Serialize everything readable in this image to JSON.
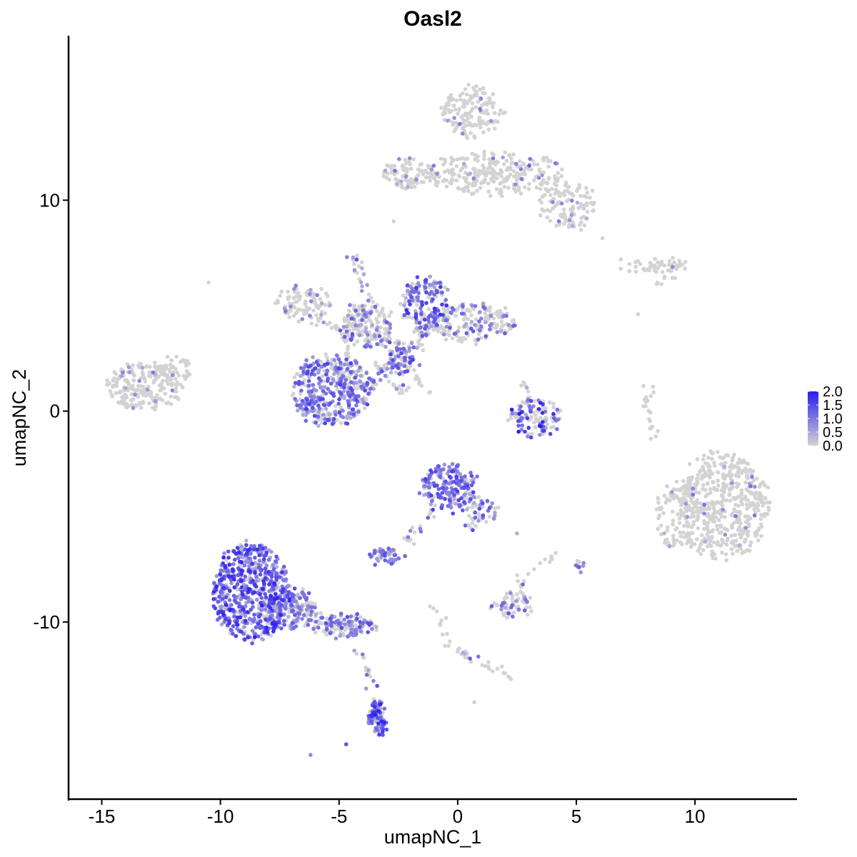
{
  "chart_data": {
    "type": "scatter",
    "title": "Oasl2",
    "xlabel": "umapNC_1",
    "ylabel": "umapNC_2",
    "xlim": [
      -16.4,
      14.3
    ],
    "ylim": [
      -18.4,
      17.8
    ],
    "xticks": [
      -15,
      -10,
      -5,
      0,
      5,
      10
    ],
    "xtick_labels": [
      "-15",
      "-10",
      "-5",
      "0",
      "5",
      "10"
    ],
    "yticks": [
      -10,
      0,
      10
    ],
    "ytick_labels": [
      "-10",
      "0",
      "10"
    ],
    "grid": false,
    "legend_position": "right",
    "colorbar": {
      "low_color": "#d3d3d3",
      "high_color": "#2a1cf0",
      "range": [
        0,
        2.0
      ],
      "tick_values": [
        0.0,
        0.5,
        1.0,
        1.5,
        2.0
      ],
      "tick_labels": [
        "0.0",
        "0.5",
        "1.0",
        "1.5",
        "2.0"
      ]
    },
    "point_color_none": "#d3d3d3",
    "clusters": [
      {
        "cx": 11.2,
        "cy": -4.5,
        "rx": 1.9,
        "ry": 2.6,
        "n": 520,
        "pexpr": 0.05,
        "emax": 1.1
      },
      {
        "cx": 9.2,
        "cy": -5.0,
        "rx": 1.0,
        "ry": 1.6,
        "n": 100,
        "pexpr": 0.05,
        "emax": 1.1
      },
      {
        "cx": 0.6,
        "cy": 14.2,
        "rx": 1.3,
        "ry": 1.2,
        "n": 150,
        "pexpr": 0.06,
        "emax": 1.1
      },
      {
        "cx": 1.5,
        "cy": 11.3,
        "rx": 3.0,
        "ry": 1.0,
        "n": 240,
        "pexpr": 0.06,
        "emax": 1.1
      },
      {
        "cx": 4.6,
        "cy": 9.8,
        "rx": 1.2,
        "ry": 1.1,
        "n": 120,
        "pexpr": 0.06,
        "emax": 1.1
      },
      {
        "cx": -2.1,
        "cy": 11.3,
        "rx": 1.1,
        "ry": 0.6,
        "n": 70,
        "pexpr": 0.06,
        "emax": 1.1
      },
      {
        "cx": 8.3,
        "cy": 6.9,
        "rx": 1.5,
        "ry": 0.3,
        "n": 50,
        "pexpr": 0.03,
        "emax": 1.0
      },
      {
        "cx": -13.2,
        "cy": 1.2,
        "rx": 1.6,
        "ry": 1.1,
        "n": 220,
        "pexpr": 0.06,
        "emax": 1.0
      },
      {
        "cx": -11.9,
        "cy": 1.9,
        "rx": 0.7,
        "ry": 0.7,
        "n": 40,
        "pexpr": 0.06,
        "emax": 1.0
      },
      {
        "cx": -6.5,
        "cy": 5.1,
        "rx": 1.2,
        "ry": 0.8,
        "n": 90,
        "pexpr": 0.15,
        "emax": 1.1
      },
      {
        "cx": -5.3,
        "cy": 1.0,
        "rx": 1.7,
        "ry": 1.7,
        "n": 420,
        "pexpr": 0.65,
        "emax": 1.6
      },
      {
        "cx": -3.8,
        "cy": 4.0,
        "rx": 1.1,
        "ry": 1.1,
        "n": 150,
        "pexpr": 0.35,
        "emax": 1.4
      },
      {
        "cx": -1.4,
        "cy": 5.0,
        "rx": 1.0,
        "ry": 1.3,
        "n": 170,
        "pexpr": 0.6,
        "emax": 1.8
      },
      {
        "cx": 0.6,
        "cy": 4.2,
        "rx": 1.9,
        "ry": 0.9,
        "n": 200,
        "pexpr": 0.3,
        "emax": 1.3
      },
      {
        "cx": -2.4,
        "cy": 2.5,
        "rx": 0.6,
        "ry": 0.8,
        "n": 70,
        "pexpr": 0.6,
        "emax": 1.6
      },
      {
        "cx": 3.3,
        "cy": -0.3,
        "rx": 1.1,
        "ry": 0.9,
        "n": 110,
        "pexpr": 0.5,
        "emax": 2.0
      },
      {
        "cx": -0.4,
        "cy": -3.6,
        "rx": 1.1,
        "ry": 1.1,
        "n": 190,
        "pexpr": 0.85,
        "emax": 1.6
      },
      {
        "cx": 0.8,
        "cy": -4.8,
        "rx": 0.9,
        "ry": 0.8,
        "n": 60,
        "pexpr": 0.5,
        "emax": 1.5
      },
      {
        "cx": -3.0,
        "cy": -6.9,
        "rx": 0.7,
        "ry": 0.4,
        "n": 45,
        "pexpr": 0.7,
        "emax": 1.5
      },
      {
        "cx": -8.7,
        "cy": -8.6,
        "rx": 1.6,
        "ry": 2.3,
        "n": 640,
        "pexpr": 0.85,
        "emax": 1.9
      },
      {
        "cx": -7.1,
        "cy": -9.4,
        "rx": 1.2,
        "ry": 1.0,
        "n": 180,
        "pexpr": 0.6,
        "emax": 1.5
      },
      {
        "cx": -4.8,
        "cy": -10.2,
        "rx": 1.3,
        "ry": 0.5,
        "n": 120,
        "pexpr": 0.55,
        "emax": 1.5
      },
      {
        "cx": -3.4,
        "cy": -14.6,
        "rx": 0.35,
        "ry": 0.8,
        "n": 75,
        "pexpr": 0.92,
        "emax": 2.0
      },
      {
        "cx": 2.3,
        "cy": -9.2,
        "rx": 0.9,
        "ry": 0.6,
        "n": 60,
        "pexpr": 0.3,
        "emax": 1.4
      },
      {
        "cx": 5.1,
        "cy": -7.3,
        "rx": 0.12,
        "ry": 0.3,
        "n": 10,
        "pexpr": 0.6,
        "emax": 1.4
      }
    ],
    "trajectories": [
      {
        "points": [
          [
            -2.3,
            10.7
          ],
          [
            -0.3,
            11.2
          ],
          [
            1.8,
            11.4
          ],
          [
            3.0,
            11.7
          ]
        ],
        "n": 40,
        "pexpr": 0.08
      },
      {
        "points": [
          [
            -4.4,
            7.4
          ],
          [
            -4.0,
            6.0
          ],
          [
            -3.5,
            4.7
          ]
        ],
        "n": 28,
        "pexpr": 0.5
      },
      {
        "points": [
          [
            -6.2,
            4.3
          ],
          [
            -4.8,
            4.0
          ],
          [
            -3.2,
            3.4
          ],
          [
            -1.5,
            3.0
          ]
        ],
        "n": 45,
        "pexpr": 0.35
      },
      {
        "points": [
          [
            -4.0,
            1.0
          ],
          [
            -3.0,
            2.0
          ],
          [
            -2.0,
            3.0
          ],
          [
            -1.2,
            3.9
          ]
        ],
        "n": 45,
        "pexpr": 0.55
      },
      {
        "points": [
          [
            -3.6,
            2.6
          ],
          [
            -2.6,
            1.1
          ],
          [
            -1.2,
            0.7
          ]
        ],
        "n": 25,
        "pexpr": 0.15
      },
      {
        "points": [
          [
            -4.5,
            4.5
          ],
          [
            -4.8,
            3.6
          ],
          [
            -4.6,
            2.4
          ]
        ],
        "n": 18,
        "pexpr": 0.1
      },
      {
        "points": [
          [
            -0.8,
            -4.5
          ],
          [
            -1.8,
            -5.7
          ],
          [
            -2.4,
            -6.6
          ]
        ],
        "n": 22,
        "pexpr": 0.3
      },
      {
        "points": [
          [
            -6.8,
            -9.3
          ],
          [
            -5.3,
            -9.9
          ],
          [
            -4.1,
            -10.4
          ]
        ],
        "n": 30,
        "pexpr": 0.55
      },
      {
        "points": [
          [
            -4.3,
            -11.2
          ],
          [
            -3.8,
            -12.2
          ],
          [
            -3.5,
            -13.8
          ]
        ],
        "n": 18,
        "pexpr": 0.5
      },
      {
        "points": [
          [
            -0.9,
            -9.3
          ],
          [
            -0.4,
            -11.2
          ],
          [
            0.5,
            -11.6
          ],
          [
            2.4,
            -12.7
          ]
        ],
        "n": 40,
        "pexpr": 0.1
      },
      {
        "points": [
          [
            2.8,
            1.5
          ],
          [
            3.0,
            0.3
          ],
          [
            3.6,
            -1.0
          ]
        ],
        "n": 18,
        "pexpr": 0.25
      },
      {
        "points": [
          [
            8.2,
            1.2
          ],
          [
            7.9,
            0.0
          ],
          [
            8.4,
            -1.4
          ]
        ],
        "n": 20,
        "pexpr": 0.0
      },
      {
        "points": [
          [
            8.5,
            5.9
          ],
          [
            8.9,
            6.4
          ],
          [
            9.4,
            7.1
          ]
        ],
        "n": 12,
        "pexpr": 0.0
      },
      {
        "points": [
          [
            -1.3,
            1.0
          ],
          [
            -1.8,
            1.7
          ],
          [
            -2.5,
            2.4
          ]
        ],
        "n": 12,
        "pexpr": 0.0
      },
      {
        "points": [
          [
            2.7,
            -7.6
          ],
          [
            2.6,
            -8.6
          ],
          [
            2.4,
            -9.3
          ]
        ],
        "n": 10,
        "pexpr": 0.1
      },
      {
        "points": [
          [
            4.3,
            -6.8
          ],
          [
            3.5,
            -7.2
          ],
          [
            3.1,
            -7.6
          ]
        ],
        "n": 8,
        "pexpr": 0.1
      }
    ],
    "singletons": [
      {
        "x": -10.5,
        "y": 6.1,
        "e": 0
      },
      {
        "x": -6.2,
        "y": -16.3,
        "e": 0.8
      },
      {
        "x": -4.7,
        "y": -15.8,
        "e": 1.4
      },
      {
        "x": -2.7,
        "y": 9.0,
        "e": 0
      },
      {
        "x": 0.7,
        "y": -13.8,
        "e": 0
      },
      {
        "x": 6.1,
        "y": 8.2,
        "e": 0
      },
      {
        "x": 7.6,
        "y": 4.6,
        "e": 0
      },
      {
        "x": 5.2,
        "y": 8.6,
        "e": 0
      },
      {
        "x": 2.5,
        "y": -5.8,
        "e": 0.4
      },
      {
        "x": 4.8,
        "y": 9.3,
        "e": 0.6
      }
    ]
  }
}
